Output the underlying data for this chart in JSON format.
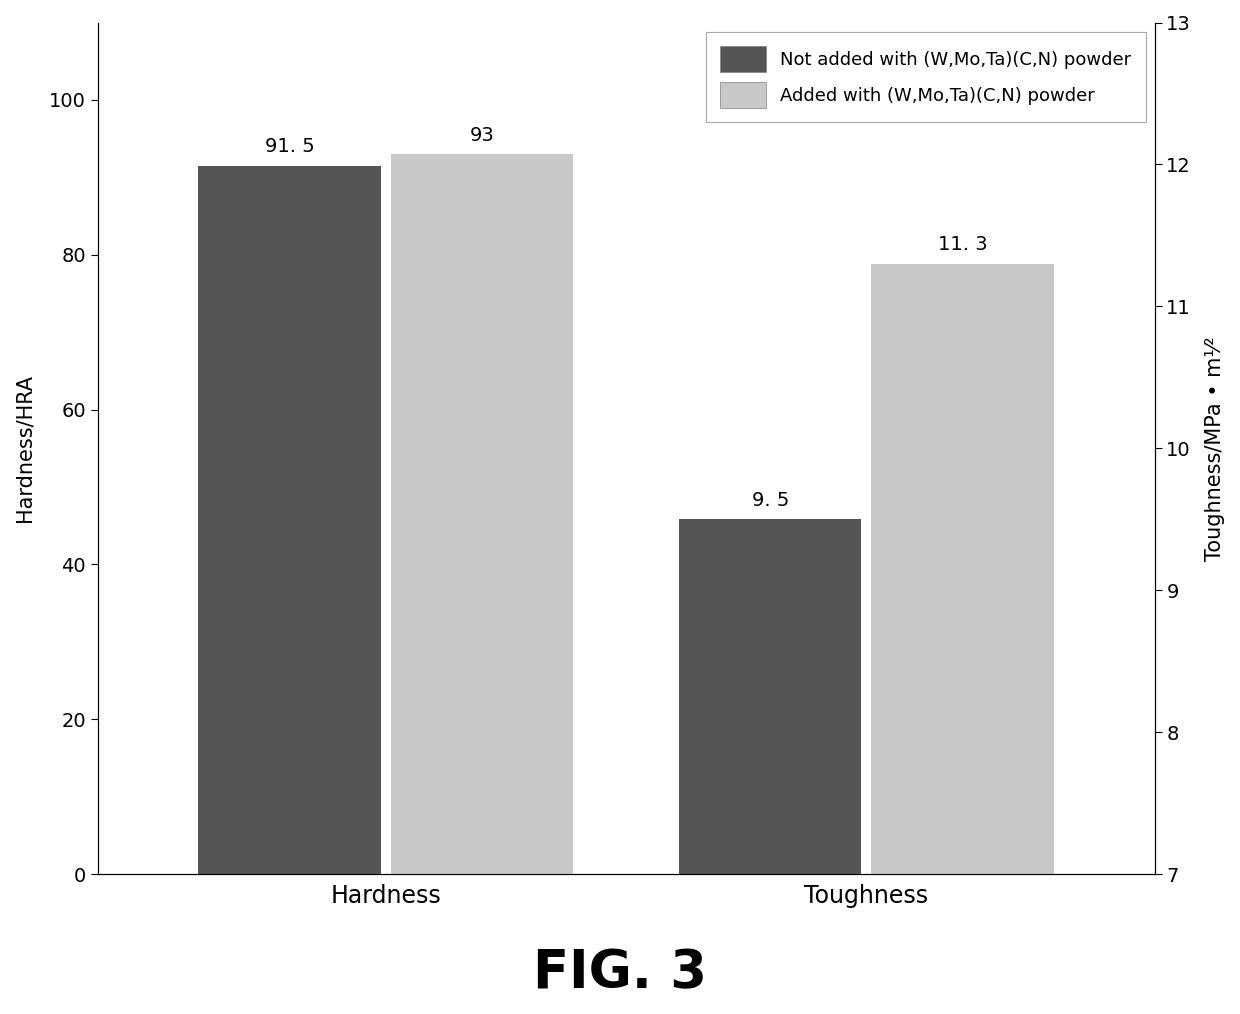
{
  "groups": [
    "Hardness",
    "Toughness"
  ],
  "series": [
    "Not added with (W,Mo,Ta)(C,N) powder",
    "Added with (W,Mo,Ta)(C,N) powder"
  ],
  "hardness_values": [
    91.5,
    93.0
  ],
  "toughness_values": [
    9.5,
    11.3
  ],
  "left_ylim": [
    0,
    110
  ],
  "left_yticks": [
    0,
    20,
    40,
    60,
    80,
    100
  ],
  "right_ylim": [
    7,
    13
  ],
  "right_yticks": [
    7,
    8,
    9,
    10,
    11,
    12,
    13
  ],
  "left_ylabel": "Hardness/HRA",
  "right_ylabel": "Toughness/MPa • m¹⁄²",
  "xlabel_hardness": "Hardness",
  "xlabel_toughness": "Toughness",
  "color_dark": "#555555",
  "color_light": "#c8c8c8",
  "fig_caption": "FIG. 3",
  "background_color": "#ffffff",
  "annotation_fontsize": 14,
  "label_fontsize": 15,
  "tick_fontsize": 14,
  "legend_fontsize": 13,
  "caption_fontsize": 38
}
